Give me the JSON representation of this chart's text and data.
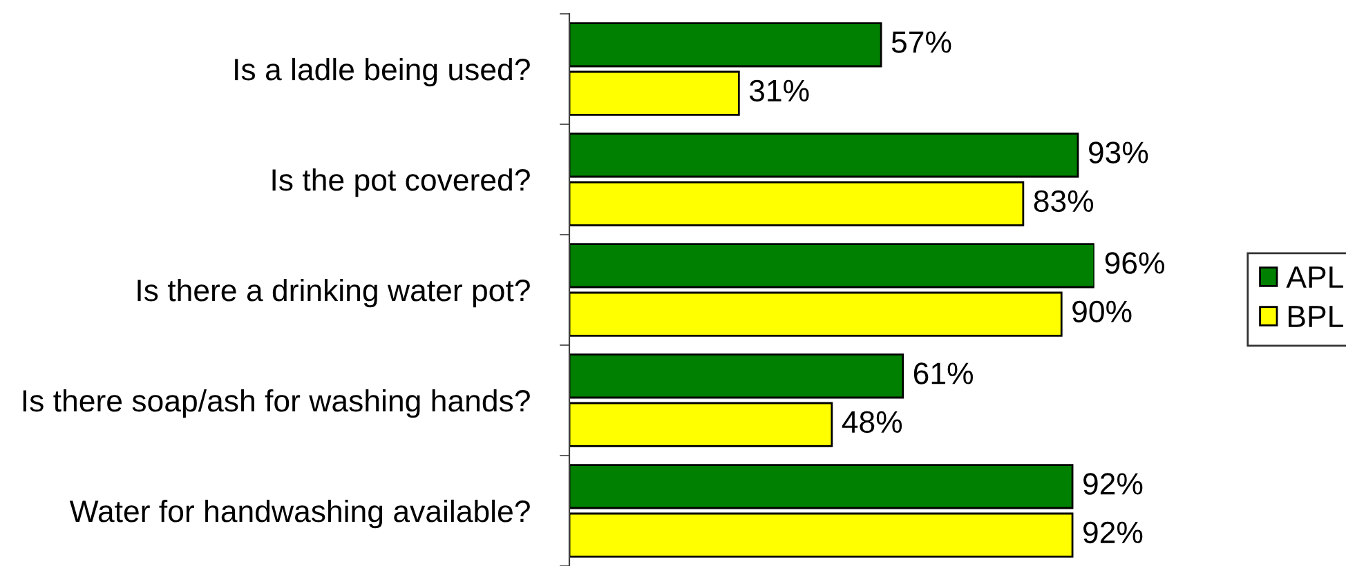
{
  "chart_data": {
    "type": "bar",
    "orientation": "horizontal",
    "tick_labels": "y",
    "legend": "right",
    "categories": [
      "Is a ladle being used?",
      "Is the pot covered?",
      "Is there a drinking water pot?",
      "Is there soap/ash for washing hands?",
      "Water for handwashing available?"
    ],
    "series": [
      {
        "name": "APL",
        "color": "#008000",
        "values": [
          57,
          93,
          96,
          61,
          92
        ],
        "value_labels": [
          "57%",
          "93%",
          "96%",
          "61%",
          "92%"
        ]
      },
      {
        "name": "BPL",
        "color": "#ffff00",
        "values": [
          31,
          83,
          90,
          48,
          92
        ],
        "value_labels": [
          "31%",
          "83%",
          "90%",
          "48%",
          "92%"
        ]
      }
    ]
  }
}
